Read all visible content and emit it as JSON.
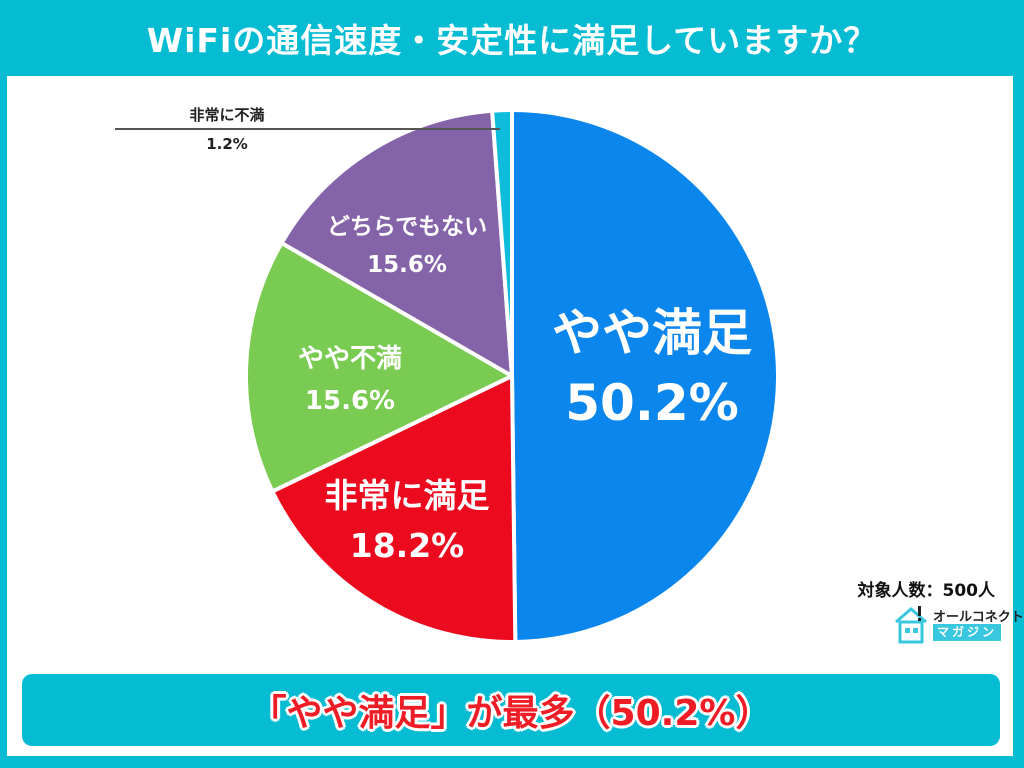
{
  "title": "WiFiの通信速度・安定性に満足していますか？",
  "chart_data": {
    "type": "pie",
    "title": "WiFiの通信速度・安定性に満足していますか？",
    "start_angle": "12 o'clock",
    "direction": "clockwise",
    "categories": [
      "やや満足",
      "非常に満足",
      "やや不満",
      "どちらでもない",
      "非常に不満"
    ],
    "values": [
      50.2,
      18.2,
      15.6,
      15.6,
      1.2
    ],
    "unit": "%",
    "colors": [
      "#0A86EC",
      "#EC0A1E",
      "#7ACB52",
      "#8463A9",
      "#0FBCDC"
    ],
    "labels": [
      {
        "name": "やや満足",
        "pct": "50.2%"
      },
      {
        "name": "非常に満足",
        "pct": "18.2%"
      },
      {
        "name": "やや不満",
        "pct": "15.6%"
      },
      {
        "name": "どちらでもない",
        "pct": "15.6%"
      },
      {
        "name": "非常に不満",
        "pct": "1.2%"
      }
    ],
    "legend": "none (labels on slices)"
  },
  "sample_size": "対象人数：500人",
  "logo": {
    "top": "オールコネクト",
    "bottom": "マガジン"
  },
  "banner": "「やや満足」が最多（50.2%）",
  "colors": {
    "frame": "#05BCD3",
    "banner_text": "#EE1C25"
  }
}
